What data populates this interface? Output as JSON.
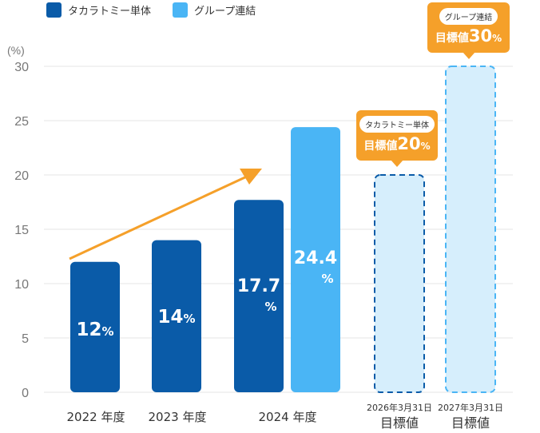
{
  "colors": {
    "single": "#0a5ba8",
    "group": "#4ab5f5",
    "target_fill": "#d6eefc",
    "target_border_single": "#0a5ba8",
    "target_border_group": "#4ab5f5",
    "trend_arrow": "#f5a02a",
    "callout": "#f5a02a",
    "grid": "#e6e6e6",
    "axis_text": "#777777",
    "label_text": "#333333"
  },
  "legend": [
    {
      "label": "タカラトミー単体",
      "color": "#0a5ba8"
    },
    {
      "label": "グループ連結",
      "color": "#4ab5f5"
    }
  ],
  "chart_data": {
    "type": "bar",
    "title": "",
    "ylabel": "(%)",
    "ylim": [
      0,
      30
    ],
    "yticks": [
      "0",
      "5",
      "10",
      "15",
      "20",
      "25",
      "30"
    ],
    "grid": true,
    "series": [
      {
        "name": "タカラトミー単体",
        "points": [
          {
            "category": "2022 年度",
            "value": 12,
            "label": "12",
            "unit": "%"
          },
          {
            "category": "2023 年度",
            "value": 14,
            "label": "14",
            "unit": "%"
          },
          {
            "category": "2024 年度",
            "value": 17.7,
            "label": "17.7",
            "unit": "%"
          }
        ]
      },
      {
        "name": "グループ連結",
        "points": [
          {
            "category": "2024 年度",
            "value": 24.4,
            "label": "24.4",
            "unit": "%"
          }
        ]
      }
    ],
    "targets": [
      {
        "series": "タカラトミー単体",
        "value": 20,
        "date": "2026年3月31日",
        "label": "目標値",
        "callout": {
          "entity": "タカラトミー単体",
          "prefix": "目標値",
          "value": "20",
          "unit": "%"
        }
      },
      {
        "series": "グループ連結",
        "value": 30,
        "date": "2027年3月31日",
        "label": "目標値",
        "callout": {
          "entity": "グループ連結",
          "prefix": "目標値",
          "value": "30",
          "unit": "%"
        }
      }
    ],
    "x_labels": [
      {
        "text": "2022 年度"
      },
      {
        "text": "2023 年度"
      },
      {
        "text": "2024 年度"
      },
      {
        "line1": "2026年3月31日",
        "line2": "目標値"
      },
      {
        "line1": "2027年3月31日",
        "line2": "目標値"
      }
    ],
    "trend": {
      "from_value": 12,
      "to_value": 20
    }
  }
}
